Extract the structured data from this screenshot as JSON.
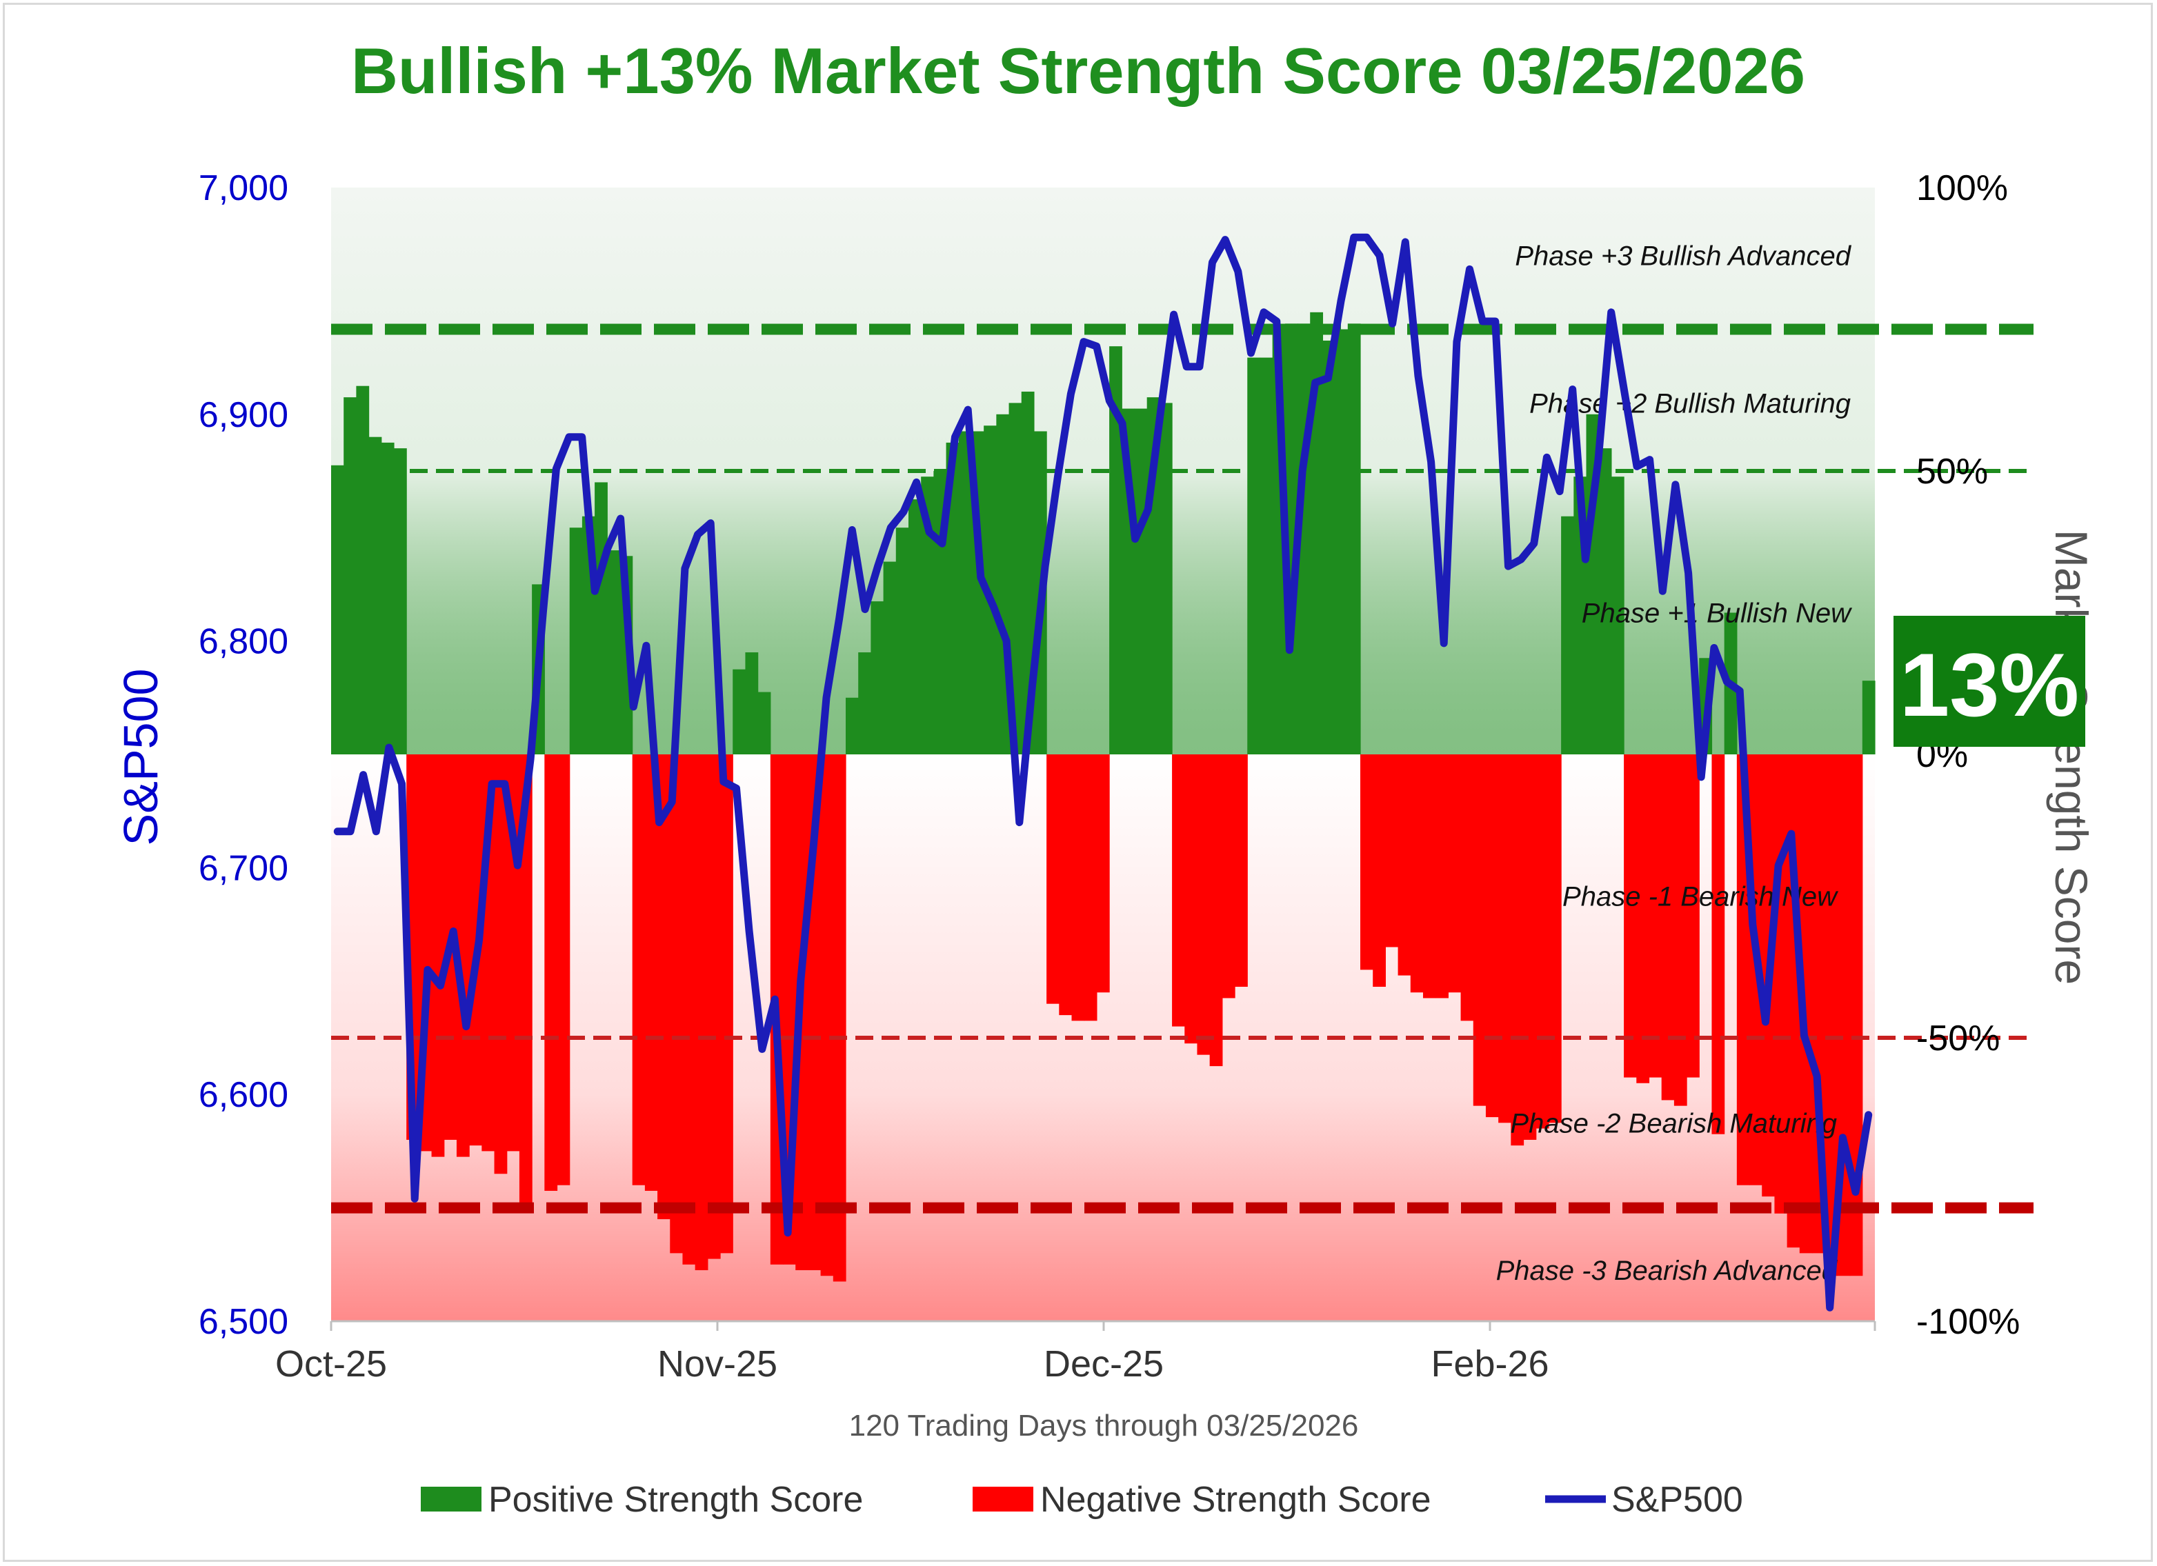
{
  "chart_data": {
    "type": "bar+line",
    "title": "Bullish +13% Market Strength Score 03/25/2026",
    "xlabel": "120 Trading Days through 03/25/2026",
    "ylabel_left": "S&P500",
    "ylabel_right": "Market Strength Score",
    "x_tick_labels": [
      "Oct-25",
      "Nov-25",
      "Dec-25",
      "Feb-26"
    ],
    "y_left": {
      "lim": [
        6500,
        7000
      ],
      "ticks": [
        "6,500",
        "6,600",
        "6,700",
        "6,800",
        "6,900",
        "7,000"
      ]
    },
    "y_right": {
      "lim": [
        -100,
        100
      ],
      "ticks": [
        "-100%",
        "-50%",
        "0%",
        "50%",
        "100%"
      ]
    },
    "phase_labels": [
      {
        "text": "Phase +3 Bullish Advanced",
        "level": 88
      },
      {
        "text": "Phase +2 Bullish Maturing",
        "level": 62
      },
      {
        "text": "Phase +1 Bullish New",
        "level": 25
      },
      {
        "text": "Phase -1 Bearish New",
        "level": -25
      },
      {
        "text": "Phase -2 Bearish Maturing",
        "level": -65
      },
      {
        "text": "Phase -3 Bearish Advanced",
        "level": -91
      }
    ],
    "threshold_lines": [
      {
        "level": 75,
        "style": "heavy",
        "color": "#1e8c1e"
      },
      {
        "level": 50,
        "style": "light",
        "color": "#1e8c1e"
      },
      {
        "level": -50,
        "style": "light",
        "color": "#c82020"
      },
      {
        "level": -80,
        "style": "heavy",
        "color": "#c00000"
      }
    ],
    "grid": false,
    "legend_position": "bottom",
    "current_score_label": "13%",
    "series": [
      {
        "name": "Positive Strength Score",
        "kind": "bar",
        "axis": "right",
        "color": "#1e8c1e"
      },
      {
        "name": "Negative Strength Score",
        "kind": "bar",
        "axis": "right",
        "color": "#ff0000"
      },
      {
        "name": "S&P500",
        "kind": "line",
        "axis": "left",
        "color": "#1c1cb8"
      }
    ],
    "strength_score": [
      51,
      63,
      65,
      56,
      55,
      54,
      -68,
      -70,
      -71,
      -68,
      -71,
      -69,
      -70,
      -74,
      -70,
      -80,
      30,
      -77,
      -76,
      40,
      42,
      48,
      36,
      35,
      -76,
      -77,
      -82,
      -88,
      -90,
      -91,
      -89,
      -88,
      15,
      18,
      11,
      -90,
      -90,
      -91,
      -91,
      -92,
      -93,
      10,
      18,
      27,
      34,
      40,
      45,
      49,
      50,
      55,
      57,
      57,
      58,
      60,
      62,
      64,
      57,
      -44,
      -46,
      -47,
      -47,
      -42,
      72,
      61,
      61,
      63,
      62,
      -48,
      -51,
      -53,
      -55,
      -43,
      -41,
      70,
      70,
      75,
      76,
      76,
      78,
      73,
      75,
      76,
      -38,
      -41,
      -34,
      -39,
      -42,
      -43,
      -43,
      -42,
      -47,
      -62,
      -64,
      -65,
      -69,
      -68,
      -66,
      -65,
      42,
      49,
      60,
      54,
      49,
      -57,
      -58,
      -57,
      -61,
      -62,
      -57,
      17,
      -67,
      25,
      -76,
      -76,
      -78,
      -81,
      -87,
      -88,
      -88,
      -92,
      -92,
      -92,
      13
    ],
    "sp500": [
      6716,
      6716,
      6741,
      6716,
      6753,
      6737,
      6554,
      6655,
      6648,
      6672,
      6630,
      6668,
      6737,
      6737,
      6701,
      6748,
      6814,
      6876,
      6890,
      6890,
      6822,
      6841,
      6854,
      6771,
      6798,
      6720,
      6729,
      6832,
      6847,
      6852,
      6738,
      6735,
      6672,
      6620,
      6642,
      6539,
      6650,
      6710,
      6775,
      6810,
      6849,
      6814,
      6833,
      6850,
      6857,
      6870,
      6848,
      6843,
      6890,
      6902,
      6828,
      6815,
      6800,
      6720,
      6780,
      6833,
      6873,
      6909,
      6932,
      6930,
      6906,
      6896,
      6845,
      6858,
      6902,
      6944,
      6921,
      6921,
      6967,
      6977,
      6963,
      6927,
      6945,
      6941,
      6796,
      6875,
      6914,
      6916,
      6950,
      6978,
      6978,
      6970,
      6940,
      6976,
      6917,
      6879,
      6799,
      6932,
      6964,
      6941,
      6941,
      6833,
      6836,
      6843,
      6881,
      6866,
      6911,
      6836,
      6880,
      6945,
      6911,
      6877,
      6880,
      6822,
      6869,
      6830,
      6740,
      6797,
      6782,
      6778,
      6675,
      6632,
      6701,
      6715,
      6626,
      6608,
      6506,
      6581,
      6557,
      6591
    ]
  },
  "legend": [
    {
      "label": "Positive Strength Score",
      "color": "#1e8c1e",
      "kind": "box"
    },
    {
      "label": "Negative Strength Score",
      "color": "#ff0000",
      "kind": "box"
    },
    {
      "label": "S&P500",
      "color": "#1c1cb8",
      "kind": "line"
    }
  ],
  "colors": {
    "positive": "#1e8c1e",
    "negative": "#ff0000",
    "line": "#1c1cb8",
    "title": "#1f8f1f",
    "badge": "#0f7d0f"
  }
}
